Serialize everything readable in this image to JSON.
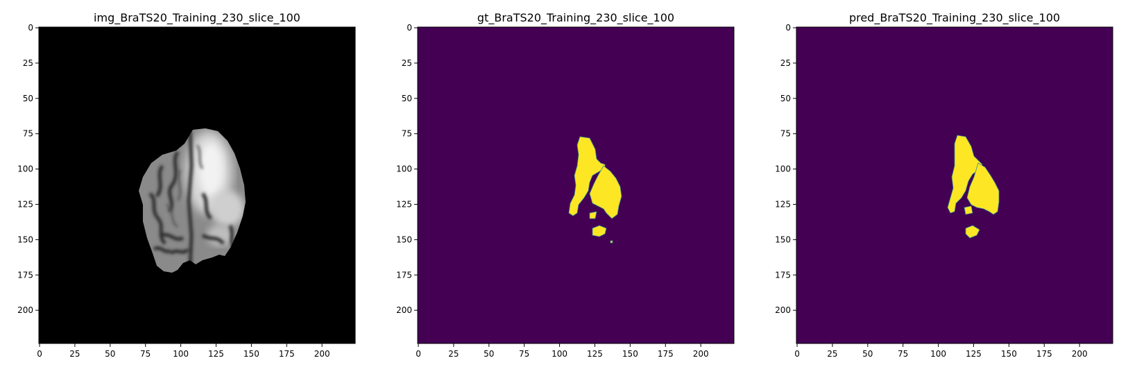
{
  "panels": [
    {
      "title": "img_BraTS20_Training_230_slice_100",
      "kind": "mri",
      "background": "#000000",
      "xticks": [
        "0",
        "25",
        "50",
        "75",
        "100",
        "125",
        "150",
        "175",
        "200"
      ],
      "yticks": [
        "0",
        "25",
        "50",
        "75",
        "100",
        "125",
        "150",
        "175",
        "200"
      ]
    },
    {
      "title": "gt_BraTS20_Training_230_slice_100",
      "kind": "mask",
      "background": "#440154",
      "foreground": "#fde725",
      "xticks": [
        "0",
        "25",
        "50",
        "75",
        "100",
        "125",
        "150",
        "175",
        "200"
      ],
      "yticks": [
        "0",
        "25",
        "50",
        "75",
        "100",
        "125",
        "150",
        "175",
        "200"
      ]
    },
    {
      "title": "pred_BraTS20_Training_230_slice_100",
      "kind": "mask",
      "background": "#440154",
      "foreground": "#fde725",
      "xticks": [
        "0",
        "25",
        "50",
        "75",
        "100",
        "125",
        "150",
        "175",
        "200"
      ],
      "yticks": [
        "0",
        "25",
        "50",
        "75",
        "100",
        "125",
        "150",
        "175",
        "200"
      ]
    }
  ],
  "colors": {
    "mri_background": "#000000",
    "mask_background": "#440154",
    "mask_foreground": "#fde725"
  }
}
